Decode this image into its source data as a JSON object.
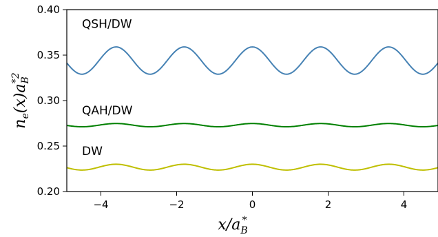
{
  "chart_data": {
    "type": "line",
    "title": "",
    "xlabel": "x/a_B^*",
    "ylabel": "n_e(x)a_B^{*2}",
    "xlim": [
      -4.9,
      4.9
    ],
    "ylim": [
      0.2,
      0.4
    ],
    "xticks": [
      -4,
      -2,
      0,
      2,
      4
    ],
    "xtick_labels": [
      "−4",
      "−2",
      "0",
      "2",
      "4"
    ],
    "yticks": [
      0.2,
      0.25,
      0.3,
      0.35,
      0.4
    ],
    "ytick_labels": [
      "0.20",
      "0.25",
      "0.30",
      "0.35",
      "0.40"
    ],
    "grid": false,
    "series": [
      {
        "name": "QSH/DW",
        "color": "#4682b4",
        "mean": 0.344,
        "amplitude": 0.015,
        "period": 1.8,
        "peak_x": 0
      },
      {
        "name": "QAH/DW",
        "color": "#008000",
        "mean": 0.273,
        "amplitude": 0.0018,
        "period": 1.8,
        "peak_x": 0
      },
      {
        "name": "DW",
        "color": "#bfbf00",
        "mean": 0.2268,
        "amplitude": 0.0032,
        "period": 1.8,
        "peak_x": 0
      }
    ]
  }
}
